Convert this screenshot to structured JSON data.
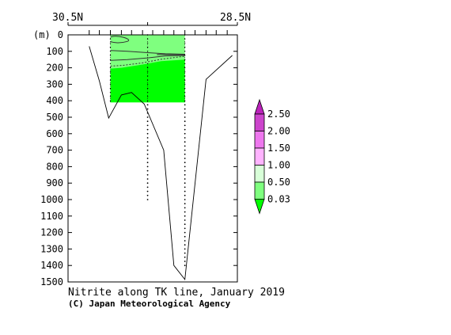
{
  "chart_data": {
    "type": "section-contour",
    "title": "Nitrite along TK line, January 2019",
    "credit": "(C) Japan Meteorological Agency",
    "x_top_labels": [
      {
        "label": "30.5N",
        "lat": 30.5
      },
      {
        "label": "28.5N",
        "lat": 28.5
      }
    ],
    "y_unit_label": "(m)",
    "ylim": [
      0,
      1500
    ],
    "y_ticks": [
      0,
      100,
      200,
      300,
      400,
      500,
      600,
      700,
      800,
      900,
      1000,
      1100,
      1200,
      1300,
      1400,
      1500
    ],
    "xlim": [
      30.5,
      28.5
    ],
    "station_ticks_lat": [
      30.25,
      30.13,
      30.0,
      29.87,
      29.75,
      29.62,
      29.5,
      29.37,
      29.25,
      29.12,
      29.0,
      28.87,
      28.75,
      28.62
    ],
    "sampled_stations": [
      {
        "lat": 30.0,
        "max_depth": 400
      },
      {
        "lat": 29.56,
        "max_depth": 1000
      },
      {
        "lat": 29.12,
        "max_depth": 1400
      }
    ],
    "bottom_profile": [
      {
        "lat": 30.25,
        "depth": 70
      },
      {
        "lat": 30.13,
        "depth": 280
      },
      {
        "lat": 30.02,
        "depth": 505
      },
      {
        "lat": 29.87,
        "depth": 365
      },
      {
        "lat": 29.75,
        "depth": 350
      },
      {
        "lat": 29.6,
        "depth": 420
      },
      {
        "lat": 29.37,
        "depth": 700
      },
      {
        "lat": 29.25,
        "depth": 1400
      },
      {
        "lat": 29.12,
        "depth": 1485
      },
      {
        "lat": 28.87,
        "depth": 270
      },
      {
        "lat": 28.56,
        "depth": 125
      }
    ],
    "shaded_region": {
      "lat_from": 30.0,
      "lat_to": 29.12,
      "depth_to": 410
    },
    "colorbar": {
      "levels": [
        "0.03",
        "0.50",
        "1.00",
        "1.50",
        "2.00",
        "2.50"
      ],
      "bands": [
        {
          "color": "#00ff00"
        },
        {
          "color": "#7fff7f"
        },
        {
          "color": "#d8ffd8"
        },
        {
          "color": "#ffb3ff"
        },
        {
          "color": "#ee77ee"
        },
        {
          "color": "#cc44cc"
        },
        {
          "color": "#bb22bb"
        }
      ]
    }
  }
}
